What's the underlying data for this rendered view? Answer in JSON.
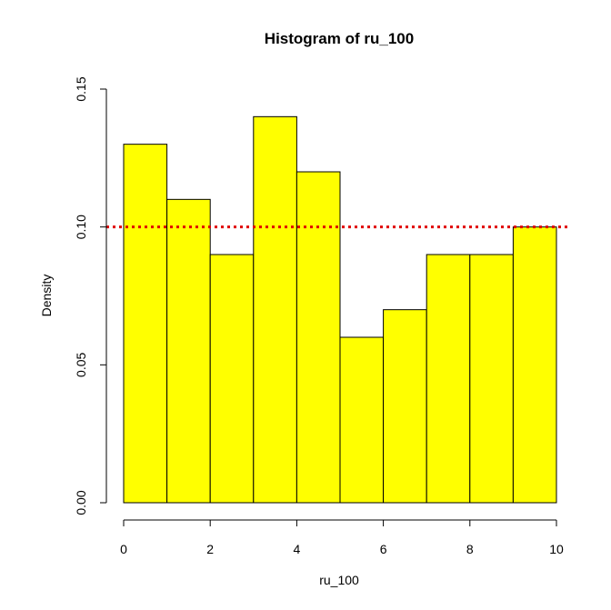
{
  "chart_data": {
    "type": "bar",
    "title": "Histogram of ru_100",
    "xlabel": "ru_100",
    "ylabel": "Density",
    "bins": [
      {
        "from": 0,
        "to": 1,
        "density": 0.13
      },
      {
        "from": 1,
        "to": 2,
        "density": 0.11
      },
      {
        "from": 2,
        "to": 3,
        "density": 0.09
      },
      {
        "from": 3,
        "to": 4,
        "density": 0.14
      },
      {
        "from": 4,
        "to": 5,
        "density": 0.12
      },
      {
        "from": 5,
        "to": 6,
        "density": 0.06
      },
      {
        "from": 6,
        "to": 7,
        "density": 0.07
      },
      {
        "from": 7,
        "to": 8,
        "density": 0.09
      },
      {
        "from": 8,
        "to": 9,
        "density": 0.09
      },
      {
        "from": 9,
        "to": 10,
        "density": 0.1
      }
    ],
    "xlim": [
      0,
      10
    ],
    "ylim": [
      0,
      0.15
    ],
    "x_ticks": [
      0,
      2,
      4,
      6,
      8,
      10
    ],
    "x_tick_labels": [
      "0",
      "2",
      "4",
      "6",
      "8",
      "10"
    ],
    "y_ticks": [
      0,
      0.05,
      0.1,
      0.15
    ],
    "y_tick_labels": [
      "0.00",
      "0.05",
      "0.10",
      "0.15"
    ],
    "reference_line": {
      "y": 0.1,
      "style": "dotted",
      "color": "#e00000"
    },
    "bar_color": "#ffff00",
    "bar_border_color": "#000000",
    "grid": false,
    "legend": "none"
  }
}
